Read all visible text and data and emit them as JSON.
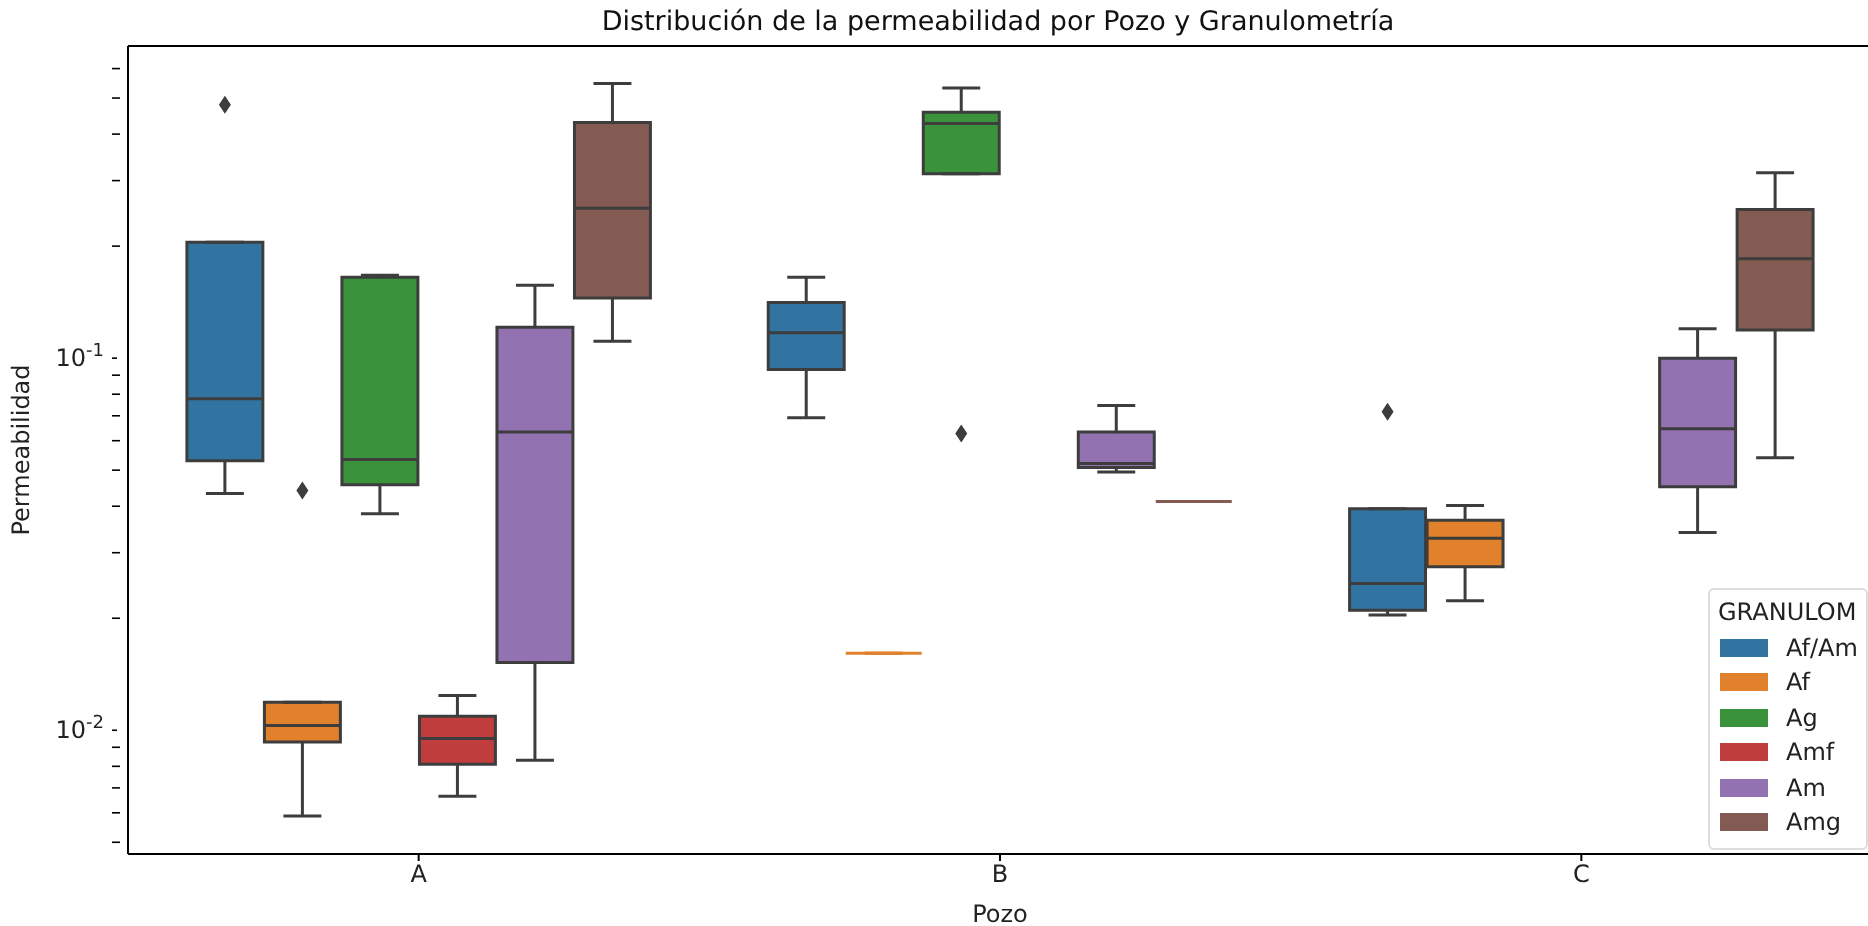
{
  "chart_data": {
    "type": "box",
    "title": "Distribución de la permeabilidad por Pozo y Granulometría",
    "xlabel": "Pozo",
    "ylabel": "Permeabilidad",
    "legend_title": "GRANULOM",
    "categories": [
      "A",
      "B",
      "C"
    ],
    "log": "y",
    "ylim": [
      0.00465,
      0.69
    ],
    "yticks": [
      {
        "value": 0.005,
        "label": null
      },
      {
        "value": 0.006,
        "label": null
      },
      {
        "value": 0.007,
        "label": null
      },
      {
        "value": 0.008,
        "label": null
      },
      {
        "value": 0.009,
        "label": null
      },
      {
        "value": 0.01,
        "label": "10$^{-2}$"
      },
      {
        "value": 0.02,
        "label": null
      },
      {
        "value": 0.03,
        "label": null
      },
      {
        "value": 0.04,
        "label": null
      },
      {
        "value": 0.05,
        "label": null
      },
      {
        "value": 0.06,
        "label": null
      },
      {
        "value": 0.07,
        "label": null
      },
      {
        "value": 0.08,
        "label": null
      },
      {
        "value": 0.09,
        "label": null
      },
      {
        "value": 0.1,
        "label": "10$^{-1}$"
      },
      {
        "value": 0.2,
        "label": null
      },
      {
        "value": 0.3,
        "label": null
      },
      {
        "value": 0.4,
        "label": null
      },
      {
        "value": 0.5,
        "label": null
      },
      {
        "value": 0.6,
        "label": null
      }
    ],
    "legend": "bottom right",
    "series": [
      {
        "name": "Af/Am",
        "color": "#3274a1",
        "boxes": [
          {
            "low": 0.0433,
            "q1": 0.053,
            "median": 0.0778,
            "q3": 0.205,
            "high": 0.205,
            "outliers": [
              0.48
            ]
          },
          {
            "low": 0.0692,
            "q1": 0.0932,
            "median": 0.117,
            "q3": 0.141,
            "high": 0.165
          },
          {
            "low": 0.0204,
            "q1": 0.021,
            "median": 0.0248,
            "q3": 0.0394,
            "high": 0.0394,
            "outliers": [
              0.0718
            ]
          }
        ]
      },
      {
        "name": "Af",
        "color": "#e1812c",
        "boxes": [
          {
            "low": 0.00588,
            "q1": 0.0093,
            "median": 0.0103,
            "q3": 0.0119,
            "high": 0.0119,
            "outliers": [
              0.0441
            ]
          },
          {
            "low": 0.0161,
            "q1": 0.0161,
            "median": 0.0161,
            "q3": 0.0161,
            "high": 0.0161
          },
          {
            "low": 0.0223,
            "q1": 0.0275,
            "median": 0.0328,
            "q3": 0.0367,
            "high": 0.0402
          }
        ]
      },
      {
        "name": "Ag",
        "color": "#3a923a",
        "boxes": [
          {
            "low": 0.0382,
            "q1": 0.0457,
            "median": 0.0534,
            "q3": 0.165,
            "high": 0.167
          },
          {
            "low": 0.313,
            "q1": 0.313,
            "median": 0.427,
            "q3": 0.458,
            "high": 0.532,
            "outliers": [
              0.0627
            ]
          },
          null
        ]
      },
      {
        "name": "Amf",
        "color": "#c03d3e",
        "boxes": [
          {
            "low": 0.00665,
            "q1": 0.0081,
            "median": 0.0095,
            "q3": 0.0109,
            "high": 0.0124
          },
          null,
          null
        ]
      },
      {
        "name": "Am",
        "color": "#9372b2",
        "boxes": [
          {
            "low": 0.0083,
            "q1": 0.0152,
            "median": 0.0633,
            "q3": 0.121,
            "high": 0.157
          },
          {
            "low": 0.0494,
            "q1": 0.0508,
            "median": 0.0521,
            "q3": 0.0633,
            "high": 0.0746
          },
          {
            "low": 0.034,
            "q1": 0.0451,
            "median": 0.0646,
            "q3": 0.1,
            "high": 0.12
          }
        ]
      },
      {
        "name": "Amg",
        "color": "#845b53",
        "boxes": [
          {
            "low": 0.111,
            "q1": 0.145,
            "median": 0.253,
            "q3": 0.43,
            "high": 0.547
          },
          {
            "low": 0.0412,
            "q1": 0.0412,
            "median": 0.0412,
            "q3": 0.0412,
            "high": 0.0412
          },
          {
            "low": 0.054,
            "q1": 0.119,
            "median": 0.185,
            "q3": 0.251,
            "high": 0.315
          }
        ]
      }
    ]
  }
}
